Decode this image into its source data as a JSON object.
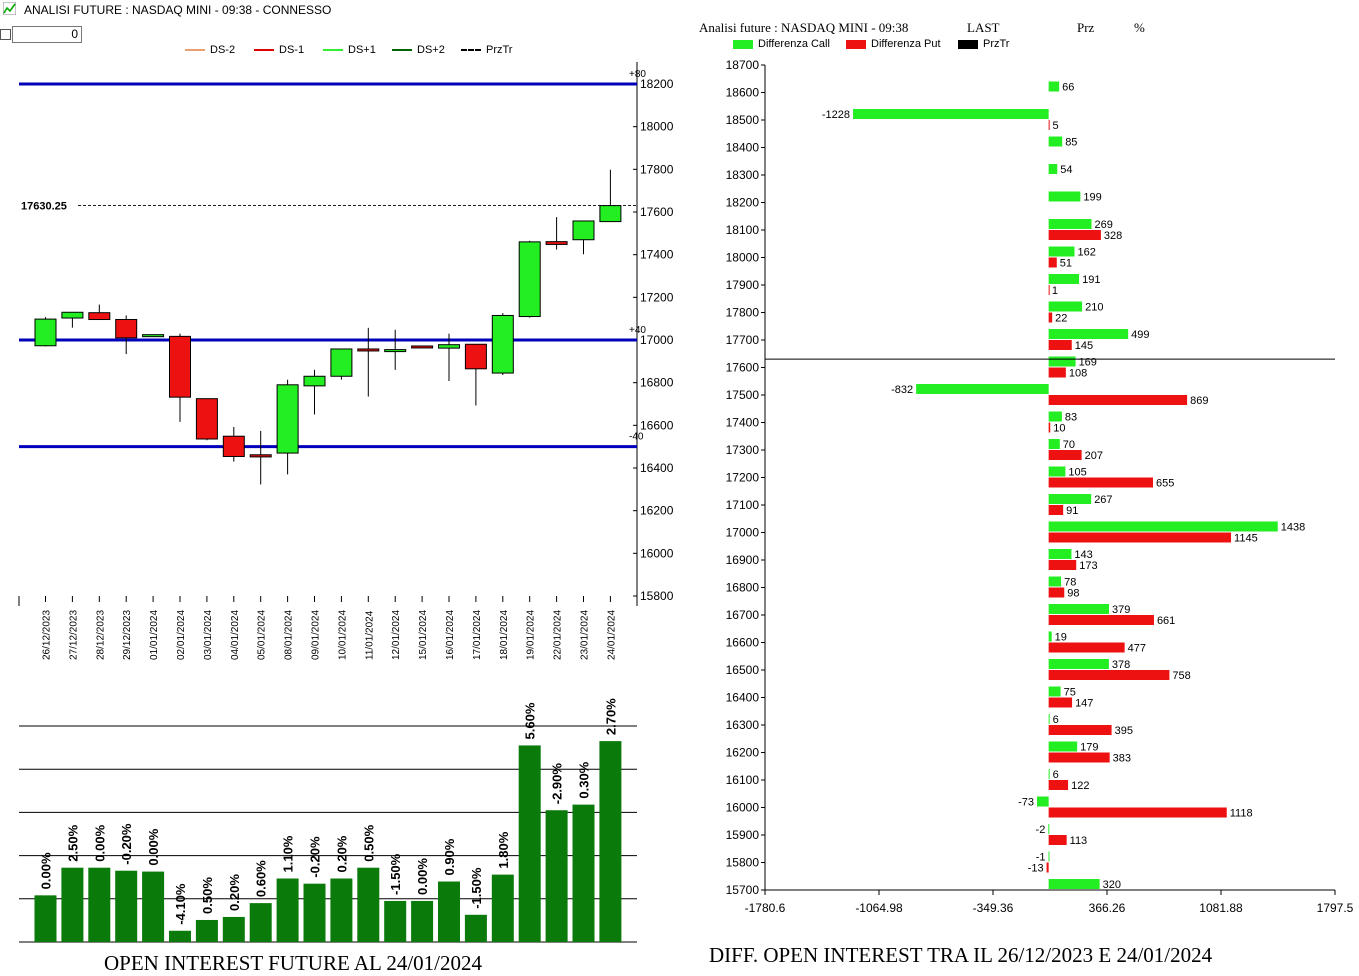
{
  "window": {
    "title": "ANALISI FUTURE : NASDAQ MINI - 09:38 - CONNESSO",
    "checkbox_checked": false,
    "input_value": "0"
  },
  "left_legend": [
    {
      "label": "DS-2",
      "color": "#e8a070",
      "style": "solid"
    },
    {
      "label": "DS-1",
      "color": "#e00000",
      "style": "solid"
    },
    {
      "label": "DS+1",
      "color": "#33ee33",
      "style": "solid"
    },
    {
      "label": "DS+2",
      "color": "#006400",
      "style": "solid"
    },
    {
      "label": "PrzTr",
      "color": "#000000",
      "style": "dashed"
    }
  ],
  "colors": {
    "bull": "#22ee22",
    "bear": "#ee1111",
    "level": "#0000bb",
    "oi_bar": "#0a7a0a",
    "call": "#22ee22",
    "put": "#ee1111",
    "przTr": "#000000"
  },
  "chart_data": [
    {
      "type": "candlestick",
      "dates": [
        "26/12/2023",
        "27/12/2023",
        "28/12/2023",
        "29/12/2023",
        "01/01/2024",
        "02/01/2024",
        "03/01/2024",
        "04/01/2024",
        "05/01/2024",
        "08/01/2024",
        "09/01/2024",
        "10/01/2024",
        "11/01/2024",
        "12/01/2024",
        "15/01/2024",
        "16/01/2024",
        "17/01/2024",
        "18/01/2024",
        "19/01/2024",
        "22/01/2024",
        "23/01/2024",
        "24/01/2024"
      ],
      "ohlc": [
        [
          16973,
          17107,
          16970,
          17098
        ],
        [
          17103,
          17128,
          17058,
          17130
        ],
        [
          17128,
          17166,
          17096,
          17096
        ],
        [
          17096,
          17115,
          16934,
          17010
        ],
        [
          17025,
          17025,
          17022,
          17025
        ],
        [
          17017,
          17030,
          16616,
          16732
        ],
        [
          16725,
          16726,
          16530,
          16536
        ],
        [
          16549,
          16592,
          16430,
          16454
        ],
        [
          16462,
          16574,
          16323,
          16452
        ],
        [
          16470,
          16814,
          16370,
          16790
        ],
        [
          16785,
          16860,
          16651,
          16830
        ],
        [
          16830,
          16951,
          16814,
          16958
        ],
        [
          16958,
          17057,
          16735,
          16955
        ],
        [
          16955,
          17048,
          16860,
          16955
        ],
        [
          16972,
          16972,
          16965,
          16965
        ],
        [
          16962,
          17030,
          16808,
          16978
        ],
        [
          16980,
          16980,
          16693,
          16865
        ],
        [
          16845,
          17126,
          16836,
          17115
        ],
        [
          17110,
          17465,
          17105,
          17460
        ],
        [
          17461,
          17576,
          17424,
          17448
        ],
        [
          17470,
          17558,
          17402,
          17558
        ],
        [
          17555,
          17798,
          17555,
          17630
        ]
      ],
      "y_ticks": [
        15800,
        16000,
        16200,
        16400,
        16600,
        16800,
        17000,
        17200,
        17400,
        17600,
        17800,
        18000,
        18200
      ],
      "ylim": [
        15800,
        18300
      ],
      "last_price_label": "17630.25",
      "last_price": 17630.25,
      "levels": [
        {
          "value": 18200,
          "label": "+80"
        },
        {
          "value": 17000,
          "label": "+40"
        },
        {
          "value": 16500,
          "label": "-40"
        }
      ]
    },
    {
      "type": "bar",
      "title": "OPEN INTEREST FUTURE AL 24/01/2024",
      "categories": [
        "26/12/2023",
        "27/12/2023",
        "28/12/2023",
        "29/12/2023",
        "01/01/2024",
        "02/01/2024",
        "03/01/2024",
        "04/01/2024",
        "05/01/2024",
        "08/01/2024",
        "09/01/2024",
        "10/01/2024",
        "11/01/2024",
        "12/01/2024",
        "15/01/2024",
        "16/01/2024",
        "17/01/2024",
        "18/01/2024",
        "19/01/2024",
        "22/01/2024",
        "23/01/2024",
        "24/01/2024"
      ],
      "labels": [
        "0.00%",
        "2.50%",
        "0.00%",
        "-0.20%",
        "0.00%",
        "-4.10%",
        "0.50%",
        "0.20%",
        "0.60%",
        "1.10%",
        "-0.20%",
        "0.20%",
        "0.50%",
        "-1.50%",
        "0.00%",
        "0.90%",
        "-1.50%",
        "1.80%",
        "5.60%",
        "-2.90%",
        "0.30%",
        "2.70%"
      ],
      "values": [
        1.08,
        1.72,
        1.72,
        1.65,
        1.63,
        0.26,
        0.51,
        0.58,
        0.9,
        1.47,
        1.35,
        1.47,
        1.72,
        0.95,
        0.95,
        1.4,
        0.63,
        1.56,
        4.55,
        3.05,
        3.18,
        4.65
      ],
      "ylim": [
        0,
        5
      ],
      "grid": true
    },
    {
      "type": "bar-horizontal",
      "title": "DIFF. OPEN INTEREST TRA IL 26/12/2023 E 24/01/2024",
      "header": {
        "left": "Analisi future : NASDAQ MINI - 09:38",
        "last": "LAST",
        "prz": "Prz",
        "pct": "%"
      },
      "legend": [
        {
          "label": "Differenza Call",
          "color": "#22ee22"
        },
        {
          "label": "Differenza Put",
          "color": "#ee1111"
        },
        {
          "label": "PrzTr",
          "color": "#000000"
        }
      ],
      "strikes": [
        18700,
        18600,
        18500,
        18400,
        18300,
        18200,
        18100,
        18000,
        17900,
        17800,
        17700,
        17600,
        17500,
        17400,
        17300,
        17200,
        17100,
        17000,
        16900,
        16800,
        16700,
        16600,
        16500,
        16400,
        16300,
        16200,
        16100,
        16000,
        15900,
        15800,
        15700
      ],
      "call": [
        null,
        66,
        -1228,
        85,
        54,
        199,
        269,
        162,
        191,
        210,
        499,
        169,
        -832,
        83,
        70,
        105,
        267,
        1438,
        143,
        78,
        379,
        19,
        378,
        75,
        6,
        179,
        6,
        -73,
        -2,
        -1,
        320
      ],
      "put": [
        null,
        null,
        5,
        null,
        null,
        null,
        328,
        51,
        1,
        22,
        145,
        108,
        869,
        10,
        207,
        655,
        91,
        1145,
        173,
        98,
        661,
        477,
        758,
        147,
        395,
        383,
        122,
        1118,
        113,
        -13,
        null
      ],
      "x_ticks": [
        "-1780.6",
        "-1064.98",
        "-349.36",
        "366.26",
        "1081.88",
        "1797.5"
      ],
      "xlim": [
        -1780.6,
        1797.5
      ],
      "przTr": 17630.25
    }
  ]
}
